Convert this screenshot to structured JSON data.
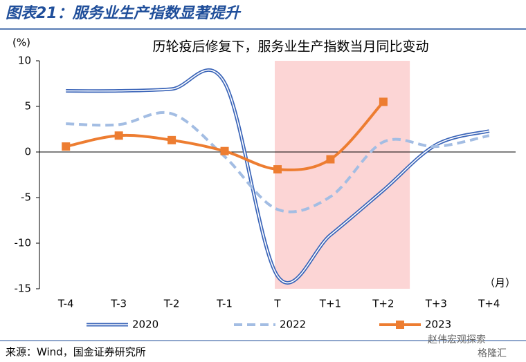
{
  "chart_data": {
    "type": "line",
    "title": "图表21：服务业生产指数显著提升",
    "subtitle": "历轮疫后修复下，服务业生产指数当月同比变动",
    "y_label": "(%)",
    "x_label": "（月）",
    "source": "来源：Wind，国金证券研究所",
    "watermark": [
      "赵伟宏观探索",
      "格隆汇"
    ],
    "categories": [
      "T-4",
      "T-3",
      "T-2",
      "T-1",
      "T",
      "T+1",
      "T+2",
      "T+3",
      "T+4"
    ],
    "series": [
      {
        "name": "2020",
        "color": "#3a64b8",
        "style": "double",
        "values": [
          6.7,
          6.7,
          6.9,
          7.6,
          -13.6,
          -9.1,
          -4.2,
          0.8,
          2.3
        ]
      },
      {
        "name": "2022",
        "color": "#a3bde3",
        "style": "dashed",
        "values": [
          3.1,
          3.0,
          4.2,
          -0.5,
          -6.3,
          -4.9,
          1.1,
          0.6,
          1.8
        ]
      },
      {
        "name": "2023",
        "color": "#ed7d31",
        "style": "marker",
        "values": [
          0.6,
          1.8,
          1.3,
          0.1,
          -1.9,
          -0.8,
          5.5,
          null,
          null
        ]
      }
    ],
    "ylim": [
      -15,
      10
    ],
    "yticks": [
      10,
      5,
      0,
      -5,
      -10,
      -15
    ],
    "grid": false
  }
}
